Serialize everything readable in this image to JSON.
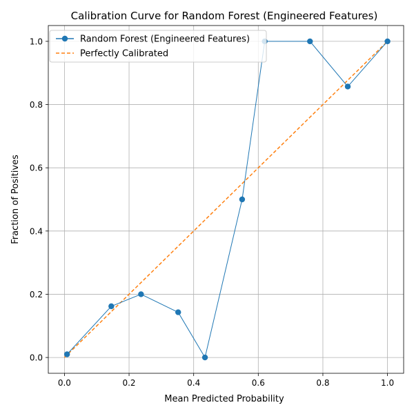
{
  "chart_data": {
    "type": "line",
    "title": "Calibration Curve for Random Forest (Engineered Features)",
    "xlabel": "Mean Predicted Probability",
    "ylabel": "Fraction of Positives",
    "xlim": [
      -0.05,
      1.05
    ],
    "ylim": [
      -0.05,
      1.05
    ],
    "xticks": [
      0.0,
      0.2,
      0.4,
      0.6,
      0.8,
      1.0
    ],
    "yticks": [
      0.0,
      0.2,
      0.4,
      0.6,
      0.8,
      1.0
    ],
    "xtick_labels": [
      "0.0",
      "0.2",
      "0.4",
      "0.6",
      "0.8",
      "1.0"
    ],
    "ytick_labels": [
      "0.0",
      "0.2",
      "0.4",
      "0.6",
      "0.8",
      "1.0"
    ],
    "grid": true,
    "legend_position": "top-left",
    "series": [
      {
        "name": "Random Forest (Engineered Features)",
        "color": "#1f77b4",
        "style": "solid-with-circle-markers",
        "x": [
          0.008,
          0.145,
          0.237,
          0.352,
          0.435,
          0.55,
          0.62,
          0.76,
          0.877,
          1.0
        ],
        "y": [
          0.01,
          0.162,
          0.2,
          0.143,
          0.0,
          0.5,
          1.0,
          1.0,
          0.857,
          1.0
        ]
      },
      {
        "name": "Perfectly Calibrated",
        "color": "#ff7f0e",
        "style": "dashed",
        "x": [
          0.0,
          1.0
        ],
        "y": [
          0.0,
          1.0
        ]
      }
    ]
  }
}
